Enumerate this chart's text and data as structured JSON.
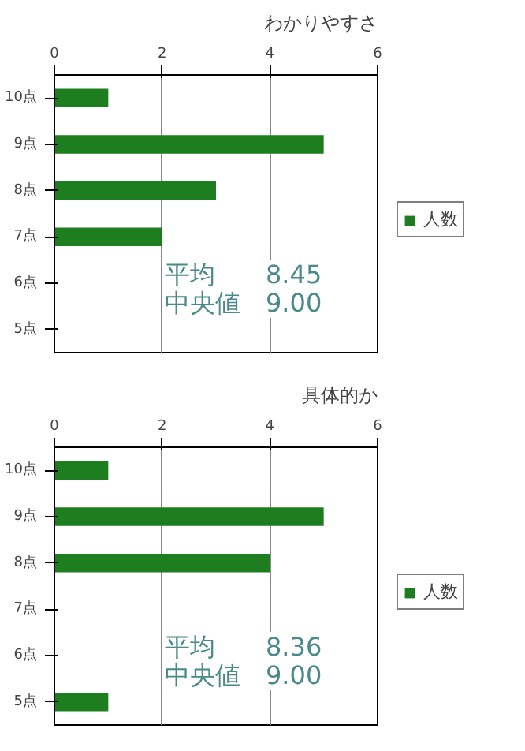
{
  "chart_data": [
    {
      "type": "bar",
      "orientation": "horizontal",
      "title": "わかりやすさ",
      "categories": [
        "10点",
        "9点",
        "8点",
        "7点",
        "6点",
        "5点"
      ],
      "series": [
        {
          "name": "人数",
          "color": "#1e7d1e",
          "values": [
            1,
            5,
            3,
            2,
            0,
            0
          ]
        }
      ],
      "xlim": [
        0,
        6
      ],
      "xticks": [
        0,
        2,
        4,
        6
      ],
      "grid": "x",
      "legend": "right",
      "annotations": [
        "平均　　8.45",
        "中央値　9.00"
      ]
    },
    {
      "type": "bar",
      "orientation": "horizontal",
      "title": "具体的か",
      "categories": [
        "10点",
        "9点",
        "8点",
        "7点",
        "6点",
        "5点"
      ],
      "series": [
        {
          "name": "人数",
          "color": "#1e7d1e",
          "values": [
            1,
            5,
            4,
            0,
            0,
            1
          ]
        }
      ],
      "xlim": [
        0,
        6
      ],
      "xticks": [
        0,
        2,
        4,
        6
      ],
      "grid": "x",
      "legend": "right",
      "annotations": [
        "平均　　8.36",
        "中央値　9.00"
      ]
    }
  ]
}
